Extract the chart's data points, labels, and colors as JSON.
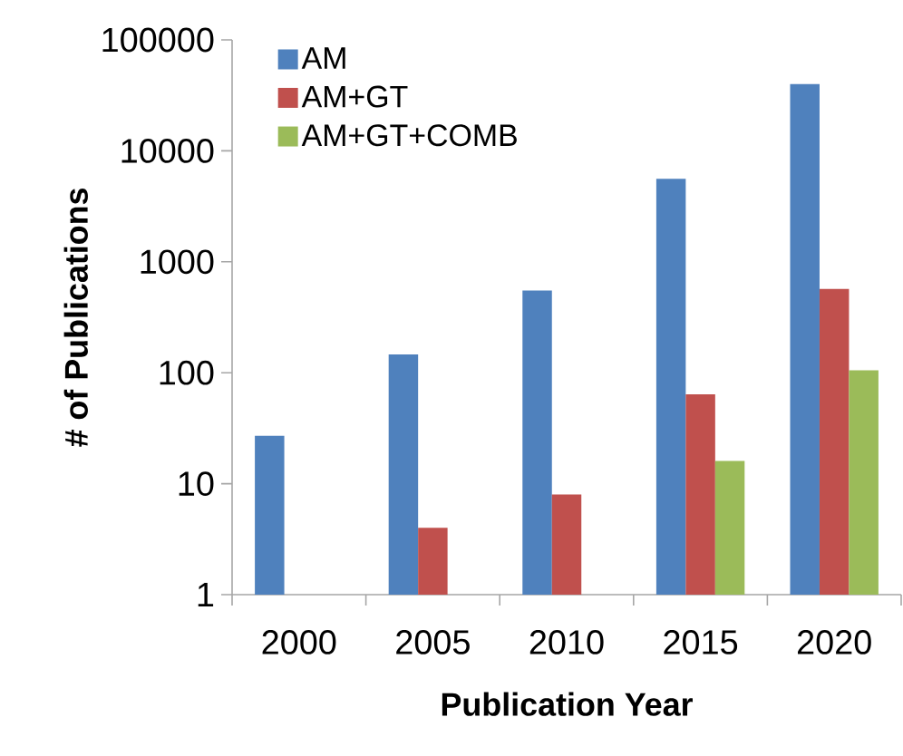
{
  "chart_data": {
    "type": "bar",
    "xlabel": "Publication Year",
    "ylabel": "# of Publications",
    "categories": [
      "2000",
      "2005",
      "2010",
      "2015",
      "2020"
    ],
    "series": [
      {
        "name": "AM",
        "color": "#4f81bd",
        "values": [
          27,
          146,
          550,
          5600,
          40000
        ]
      },
      {
        "name": "AM+GT",
        "color": "#c0504d",
        "values": [
          null,
          4,
          8,
          64,
          570
        ]
      },
      {
        "name": "AM+GT+COMB",
        "color": "#9bbb59",
        "values": [
          null,
          null,
          null,
          16,
          105
        ]
      }
    ],
    "log": "y",
    "ylim": [
      1,
      100000
    ],
    "yticks": [
      1,
      10,
      100,
      1000,
      10000,
      100000
    ],
    "legend": "top left"
  }
}
